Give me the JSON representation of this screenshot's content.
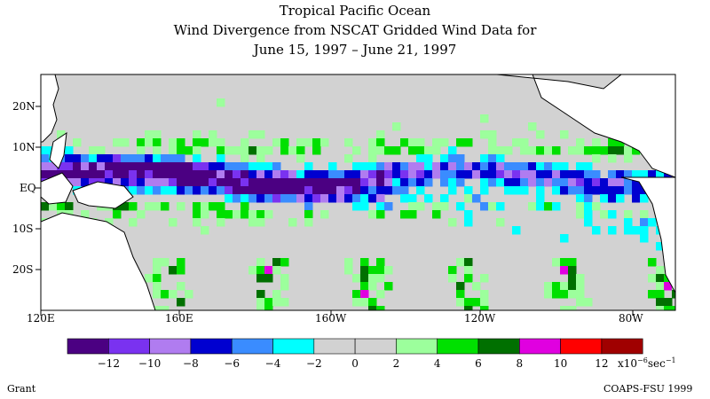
{
  "title": {
    "line1": "Tropical Pacific Ocean",
    "line2": "Wind Divergence from NSCAT Gridded Wind Data for",
    "line3": "June 15, 1997 – June 21, 1997"
  },
  "map": {
    "lon_labels": [
      "120E",
      "160E",
      "160W",
      "120W",
      "80W"
    ],
    "lat_labels": [
      "20N",
      "10N",
      "EQ",
      "10S",
      "20S"
    ]
  },
  "colorbar": {
    "colors": [
      "#4b0082",
      "#7a32f0",
      "#b07cf0",
      "#0000d0",
      "#3a8cff",
      "#00ffff",
      "#d2d2d2",
      "#d2d2d2",
      "#9cff9c",
      "#00e000",
      "#007000",
      "#e000e0",
      "#ff0000",
      "#a00000"
    ],
    "tick_labels": [
      "−12",
      "−10",
      "−8",
      "−6",
      "−4",
      "−2",
      "0",
      "2",
      "4",
      "6",
      "8",
      "10",
      "12"
    ],
    "unit_prefix": "x10",
    "unit_exponent": "−6",
    "unit_suffix": "sec",
    "unit_suffix_exp": "−1"
  },
  "footer": {
    "left": "Grant",
    "right": "COAPS-FSU 1999"
  }
}
